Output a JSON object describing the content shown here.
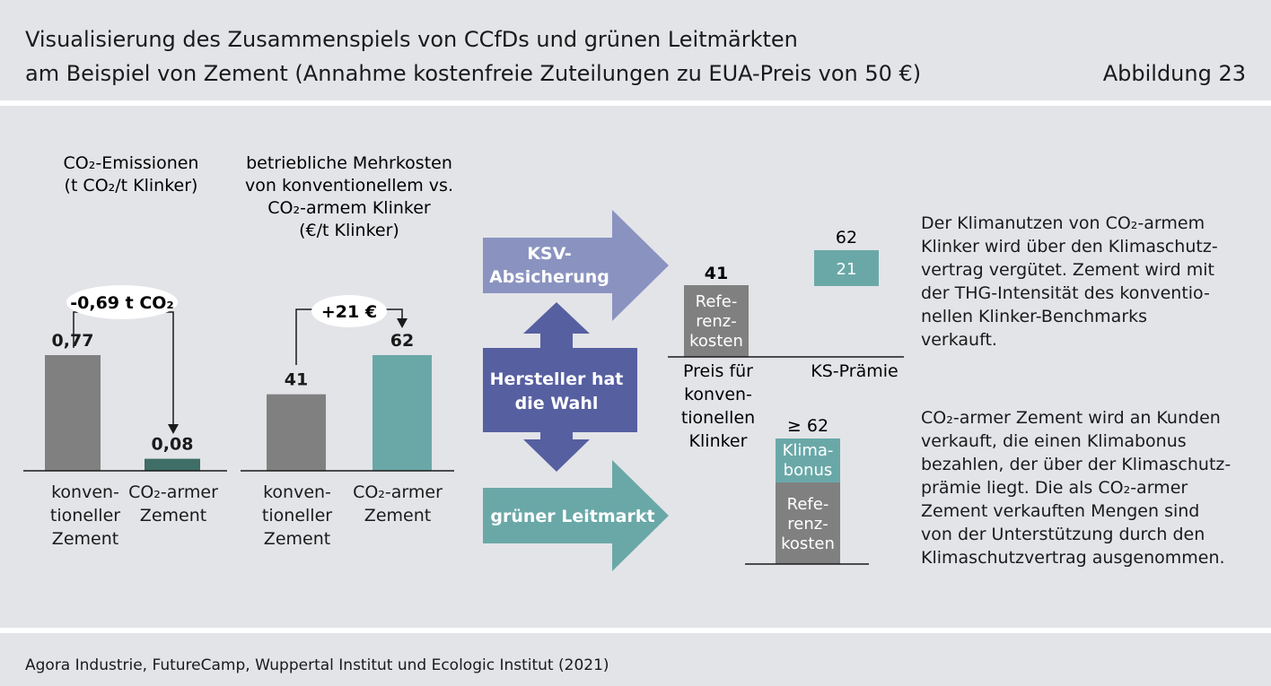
{
  "header": {
    "title_line1": "Visualisierung des Zusammenspiels von CCfDs und grünen Leitmärkten",
    "title_line2": "am Beispiel von Zement (Annahme kostenfreie Zuteilungen zu EUA-Preis von 50 €)",
    "figure_number": "Abbildung 23"
  },
  "colors": {
    "background": "#e3e4e8",
    "gray_bar": "#808080",
    "teal_bar": "#6aa8a8",
    "dark_teal_bar": "#3f6e66",
    "purple": "#8a93c0",
    "dark_purple": "#565fa0"
  },
  "chart_data": [
    {
      "type": "bar",
      "title": "CO₂-Emissionen",
      "subtitle": "(t CO₂/t Klinker)",
      "categories": [
        "konven-tioneller Zement",
        "CO₂-armer Zement"
      ],
      "values": [
        0.77,
        0.08
      ],
      "value_labels": [
        "0,77",
        "0,08"
      ],
      "annotation": "-0,69 t CO₂"
    },
    {
      "type": "bar",
      "title": "betriebliche Mehrkosten von konventionellem vs. CO₂-armem Klinker",
      "subtitle": "(€/t Klinker)",
      "categories": [
        "konven-tioneller Zement",
        "CO₂-armer Zement"
      ],
      "values": [
        41,
        62
      ],
      "value_labels": [
        "41",
        "62"
      ],
      "annotation": "+21 €"
    }
  ],
  "arrows": {
    "ksv": [
      "KSV-",
      "Absicherung"
    ],
    "wahl": [
      "Hersteller hat",
      "die Wahl"
    ],
    "leitmarkt": "grüner Leitmarkt"
  },
  "ksv_panel": {
    "reference_value": "41",
    "reference_label": [
      "Refe-",
      "renz-",
      "kosten"
    ],
    "premium_total": "62",
    "premium_value": "21",
    "axis_left": [
      "Preis für",
      "konven-",
      "tionellen",
      "Klinker"
    ],
    "axis_right": "KS-Prämie"
  },
  "green_panel": {
    "total": "≥ 62",
    "bonus_label": [
      "Klima-",
      "bonus"
    ],
    "reference_label": [
      "Refe-",
      "renz-",
      "kosten"
    ]
  },
  "descriptions": {
    "ksv": [
      "Der Klimanutzen von CO₂-armem",
      "Klinker wird über den Klimaschutz-",
      "vertrag vergütet. Zement wird mit",
      "der THG-Intensität des konventio-",
      "nellen Klinker-Benchmarks",
      "verkauft."
    ],
    "green": [
      "CO₂-armer Zement wird an Kunden",
      "verkauft, die einen Klimabonus",
      "bezahlen, der über der Klimaschutz-",
      "prämie liegt. Die als CO₂-armer",
      "Zement verkauften Mengen sind",
      "von der Unterstützung durch den",
      "Klimaschutzvertrag ausgenommen."
    ]
  },
  "source": "Agora Industrie, FutureCamp, Wuppertal Institut und Ecologic Institut (2021)"
}
